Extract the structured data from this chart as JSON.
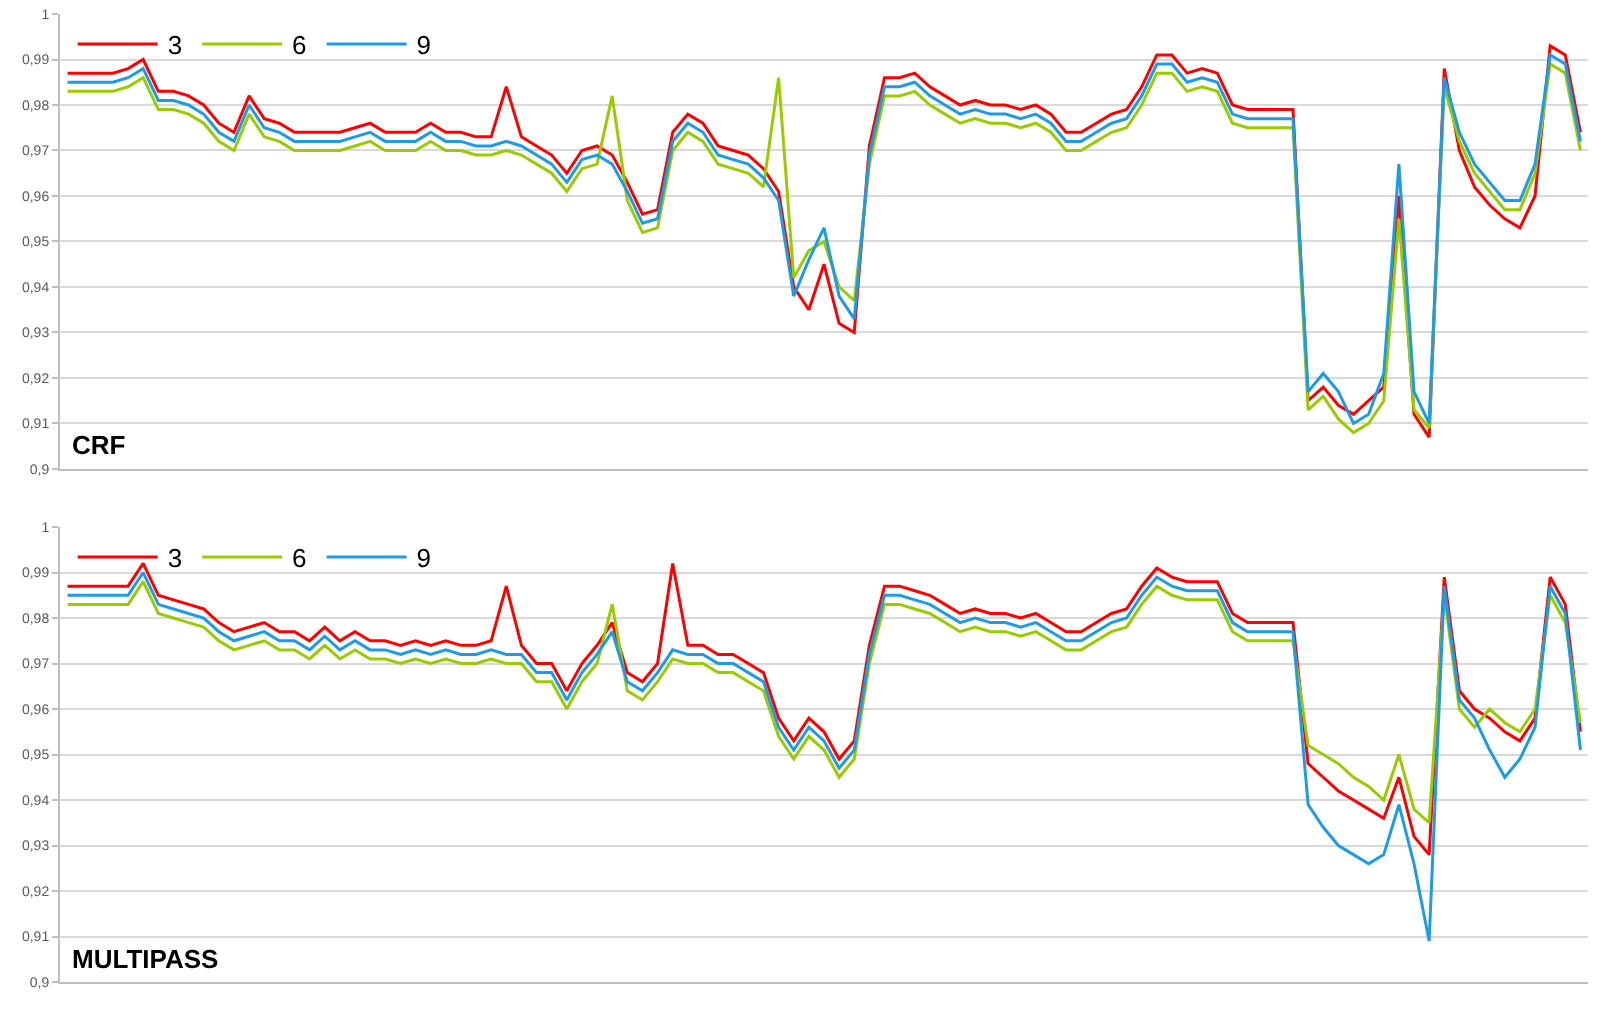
{
  "chart_data": [
    {
      "type": "line",
      "title": "CRF",
      "categories": [
        null,
        null,
        null,
        null,
        null,
        null,
        null,
        null,
        null,
        null,
        null,
        null,
        null,
        null,
        null,
        null,
        null,
        null,
        null,
        null,
        null,
        null,
        null,
        null,
        null,
        null,
        null,
        null,
        null,
        null,
        null,
        null,
        null,
        null,
        null,
        null,
        null,
        null,
        null,
        null,
        null,
        null,
        null,
        null,
        null,
        null,
        null,
        null,
        null,
        null,
        null,
        null,
        null,
        null,
        null,
        null,
        null,
        null,
        null,
        null,
        null,
        null,
        null,
        null,
        null,
        null,
        null,
        null,
        null,
        null,
        null,
        null,
        null,
        null,
        null,
        null,
        null,
        null,
        null,
        null,
        null,
        null,
        null,
        null,
        null,
        null,
        null,
        null,
        null,
        null,
        null,
        null,
        null,
        null,
        null,
        null,
        null,
        null,
        null,
        null,
        null
      ],
      "series": [
        {
          "name": "3",
          "color": "#ff0000",
          "values": [
            0.987,
            0.987,
            0.987,
            0.987,
            0.988,
            0.99,
            0.983,
            0.983,
            0.982,
            0.98,
            0.976,
            0.974,
            0.982,
            0.977,
            0.976,
            0.974,
            0.974,
            0.974,
            0.974,
            0.975,
            0.976,
            0.974,
            0.974,
            0.974,
            0.976,
            0.974,
            0.974,
            0.973,
            0.973,
            0.984,
            0.973,
            0.971,
            0.969,
            0.965,
            0.97,
            0.971,
            0.969,
            0.963,
            0.956,
            0.957,
            0.974,
            0.978,
            0.976,
            0.971,
            0.97,
            0.969,
            0.966,
            0.961,
            0.94,
            0.935,
            0.945,
            0.932,
            0.93,
            0.971,
            0.986,
            0.986,
            0.987,
            0.984,
            0.982,
            0.98,
            0.981,
            0.98,
            0.98,
            0.979,
            0.98,
            0.978,
            0.974,
            0.974,
            0.976,
            0.978,
            0.979,
            0.984,
            0.991,
            0.991,
            0.987,
            0.988,
            0.987,
            0.98,
            0.979,
            0.979,
            0.979,
            0.979,
            0.915,
            0.918,
            0.914,
            0.912,
            0.915,
            0.918,
            0.96,
            0.912,
            0.907,
            0.988,
            0.97,
            0.962,
            0.958,
            0.955,
            0.953,
            0.96,
            0.993,
            0.991,
            0.974
          ]
        },
        {
          "name": "6",
          "color": "#99cc00",
          "values": [
            0.983,
            0.983,
            0.983,
            0.983,
            0.984,
            0.986,
            0.979,
            0.979,
            0.978,
            0.976,
            0.972,
            0.97,
            0.978,
            0.973,
            0.972,
            0.97,
            0.97,
            0.97,
            0.97,
            0.971,
            0.972,
            0.97,
            0.97,
            0.97,
            0.972,
            0.97,
            0.97,
            0.969,
            0.969,
            0.97,
            0.969,
            0.967,
            0.965,
            0.961,
            0.966,
            0.967,
            0.982,
            0.959,
            0.952,
            0.953,
            0.97,
            0.974,
            0.972,
            0.967,
            0.966,
            0.965,
            0.962,
            0.986,
            0.942,
            0.948,
            0.95,
            0.94,
            0.937,
            0.967,
            0.982,
            0.982,
            0.983,
            0.98,
            0.978,
            0.976,
            0.977,
            0.976,
            0.976,
            0.975,
            0.976,
            0.974,
            0.97,
            0.97,
            0.972,
            0.974,
            0.975,
            0.98,
            0.987,
            0.987,
            0.983,
            0.984,
            0.983,
            0.976,
            0.975,
            0.975,
            0.975,
            0.975,
            0.913,
            0.916,
            0.911,
            0.908,
            0.91,
            0.915,
            0.955,
            0.913,
            0.909,
            0.984,
            0.972,
            0.965,
            0.961,
            0.957,
            0.957,
            0.965,
            0.989,
            0.987,
            0.97
          ]
        },
        {
          "name": "9",
          "color": "#1e9be6",
          "values": [
            0.985,
            0.985,
            0.985,
            0.985,
            0.986,
            0.988,
            0.981,
            0.981,
            0.98,
            0.978,
            0.974,
            0.972,
            0.98,
            0.975,
            0.974,
            0.972,
            0.972,
            0.972,
            0.972,
            0.973,
            0.974,
            0.972,
            0.972,
            0.972,
            0.974,
            0.972,
            0.972,
            0.971,
            0.971,
            0.972,
            0.971,
            0.969,
            0.967,
            0.963,
            0.968,
            0.969,
            0.967,
            0.961,
            0.954,
            0.955,
            0.972,
            0.976,
            0.974,
            0.969,
            0.968,
            0.967,
            0.964,
            0.959,
            0.938,
            0.946,
            0.953,
            0.938,
            0.933,
            0.969,
            0.984,
            0.984,
            0.985,
            0.982,
            0.98,
            0.978,
            0.979,
            0.978,
            0.978,
            0.977,
            0.978,
            0.976,
            0.972,
            0.972,
            0.974,
            0.976,
            0.977,
            0.982,
            0.989,
            0.989,
            0.985,
            0.986,
            0.985,
            0.978,
            0.977,
            0.977,
            0.977,
            0.977,
            0.917,
            0.921,
            0.917,
            0.91,
            0.912,
            0.921,
            0.967,
            0.917,
            0.91,
            0.986,
            0.974,
            0.967,
            0.963,
            0.959,
            0.959,
            0.967,
            0.991,
            0.989,
            0.972
          ]
        }
      ],
      "ylim": [
        0.9,
        1
      ],
      "yticks": [
        {
          "value": 0.9,
          "label": "0,9"
        },
        {
          "value": 0.91,
          "label": "0,91"
        },
        {
          "value": 0.92,
          "label": "0,92"
        },
        {
          "value": 0.93,
          "label": "0,93"
        },
        {
          "value": 0.94,
          "label": "0,94"
        },
        {
          "value": 0.95,
          "label": "0,95"
        },
        {
          "value": 0.96,
          "label": "0,96"
        },
        {
          "value": 0.97,
          "label": "0,97"
        },
        {
          "value": 0.98,
          "label": "0,98"
        },
        {
          "value": 0.99,
          "label": "0,99"
        },
        {
          "value": 1,
          "label": "1"
        }
      ],
      "grid": "y",
      "legend": "top left",
      "tick_labels": "y",
      "marker": "none",
      "line_style": "solid"
    },
    {
      "type": "line",
      "title": "MULTIPASS",
      "categories": [
        null,
        null,
        null,
        null,
        null,
        null,
        null,
        null,
        null,
        null,
        null,
        null,
        null,
        null,
        null,
        null,
        null,
        null,
        null,
        null,
        null,
        null,
        null,
        null,
        null,
        null,
        null,
        null,
        null,
        null,
        null,
        null,
        null,
        null,
        null,
        null,
        null,
        null,
        null,
        null,
        null,
        null,
        null,
        null,
        null,
        null,
        null,
        null,
        null,
        null,
        null,
        null,
        null,
        null,
        null,
        null,
        null,
        null,
        null,
        null,
        null,
        null,
        null,
        null,
        null,
        null,
        null,
        null,
        null,
        null,
        null,
        null,
        null,
        null,
        null,
        null,
        null,
        null,
        null,
        null,
        null,
        null,
        null,
        null,
        null,
        null,
        null,
        null,
        null,
        null,
        null,
        null,
        null,
        null,
        null,
        null,
        null,
        null,
        null,
        null,
        null
      ],
      "series": [
        {
          "name": "3",
          "color": "#ff0000",
          "values": [
            0.987,
            0.987,
            0.987,
            0.987,
            0.987,
            0.992,
            0.985,
            0.984,
            0.983,
            0.982,
            0.979,
            0.977,
            0.978,
            0.979,
            0.977,
            0.977,
            0.975,
            0.978,
            0.975,
            0.977,
            0.975,
            0.975,
            0.974,
            0.975,
            0.974,
            0.975,
            0.974,
            0.974,
            0.975,
            0.987,
            0.974,
            0.97,
            0.97,
            0.964,
            0.97,
            0.974,
            0.979,
            0.968,
            0.966,
            0.97,
            0.992,
            0.974,
            0.974,
            0.972,
            0.972,
            0.97,
            0.968,
            0.958,
            0.953,
            0.958,
            0.955,
            0.949,
            0.953,
            0.974,
            0.987,
            0.987,
            0.986,
            0.985,
            0.983,
            0.981,
            0.982,
            0.981,
            0.981,
            0.98,
            0.981,
            0.979,
            0.977,
            0.977,
            0.979,
            0.981,
            0.982,
            0.987,
            0.991,
            0.989,
            0.988,
            0.988,
            0.988,
            0.981,
            0.979,
            0.979,
            0.979,
            0.979,
            0.948,
            0.945,
            0.942,
            0.94,
            0.938,
            0.936,
            0.945,
            0.932,
            0.928,
            0.989,
            0.964,
            0.96,
            0.958,
            0.955,
            0.953,
            0.958,
            0.989,
            0.983,
            0.955
          ]
        },
        {
          "name": "6",
          "color": "#99cc00",
          "values": [
            0.983,
            0.983,
            0.983,
            0.983,
            0.983,
            0.988,
            0.981,
            0.98,
            0.979,
            0.978,
            0.975,
            0.973,
            0.974,
            0.975,
            0.973,
            0.973,
            0.971,
            0.974,
            0.971,
            0.973,
            0.971,
            0.971,
            0.97,
            0.971,
            0.97,
            0.971,
            0.97,
            0.97,
            0.971,
            0.97,
            0.97,
            0.966,
            0.966,
            0.96,
            0.966,
            0.97,
            0.983,
            0.964,
            0.962,
            0.966,
            0.971,
            0.97,
            0.97,
            0.968,
            0.968,
            0.966,
            0.964,
            0.954,
            0.949,
            0.954,
            0.951,
            0.945,
            0.949,
            0.97,
            0.983,
            0.983,
            0.982,
            0.981,
            0.979,
            0.977,
            0.978,
            0.977,
            0.977,
            0.976,
            0.977,
            0.975,
            0.973,
            0.973,
            0.975,
            0.977,
            0.978,
            0.983,
            0.987,
            0.985,
            0.984,
            0.984,
            0.984,
            0.977,
            0.975,
            0.975,
            0.975,
            0.975,
            0.952,
            0.95,
            0.948,
            0.945,
            0.943,
            0.94,
            0.95,
            0.938,
            0.935,
            0.985,
            0.96,
            0.956,
            0.96,
            0.957,
            0.955,
            0.96,
            0.985,
            0.979,
            0.957
          ]
        },
        {
          "name": "9",
          "color": "#1e9be6",
          "values": [
            0.985,
            0.985,
            0.985,
            0.985,
            0.985,
            0.99,
            0.983,
            0.982,
            0.981,
            0.98,
            0.977,
            0.975,
            0.976,
            0.977,
            0.975,
            0.975,
            0.973,
            0.976,
            0.973,
            0.975,
            0.973,
            0.973,
            0.972,
            0.973,
            0.972,
            0.973,
            0.972,
            0.972,
            0.973,
            0.972,
            0.972,
            0.968,
            0.968,
            0.962,
            0.968,
            0.972,
            0.977,
            0.966,
            0.964,
            0.968,
            0.973,
            0.972,
            0.972,
            0.97,
            0.97,
            0.968,
            0.966,
            0.956,
            0.951,
            0.956,
            0.953,
            0.947,
            0.951,
            0.972,
            0.985,
            0.985,
            0.984,
            0.983,
            0.981,
            0.979,
            0.98,
            0.979,
            0.979,
            0.978,
            0.979,
            0.977,
            0.975,
            0.975,
            0.977,
            0.979,
            0.98,
            0.985,
            0.989,
            0.987,
            0.986,
            0.986,
            0.986,
            0.979,
            0.977,
            0.977,
            0.977,
            0.977,
            0.939,
            0.934,
            0.93,
            0.928,
            0.926,
            0.928,
            0.939,
            0.926,
            0.909,
            0.987,
            0.962,
            0.958,
            0.951,
            0.945,
            0.949,
            0.956,
            0.987,
            0.981,
            0.951
          ]
        }
      ],
      "ylim": [
        0.9,
        1
      ],
      "yticks": [
        {
          "value": 0.9,
          "label": "0,9"
        },
        {
          "value": 0.91,
          "label": "0,91"
        },
        {
          "value": 0.92,
          "label": "0,92"
        },
        {
          "value": 0.93,
          "label": "0,93"
        },
        {
          "value": 0.94,
          "label": "0,94"
        },
        {
          "value": 0.95,
          "label": "0,95"
        },
        {
          "value": 0.96,
          "label": "0,96"
        },
        {
          "value": 0.97,
          "label": "0,97"
        },
        {
          "value": 0.98,
          "label": "0,98"
        },
        {
          "value": 0.99,
          "label": "0,99"
        },
        {
          "value": 1,
          "label": "1"
        }
      ],
      "grid": "y",
      "legend": "top left",
      "tick_labels": "y",
      "marker": "none",
      "line_style": "solid"
    }
  ]
}
